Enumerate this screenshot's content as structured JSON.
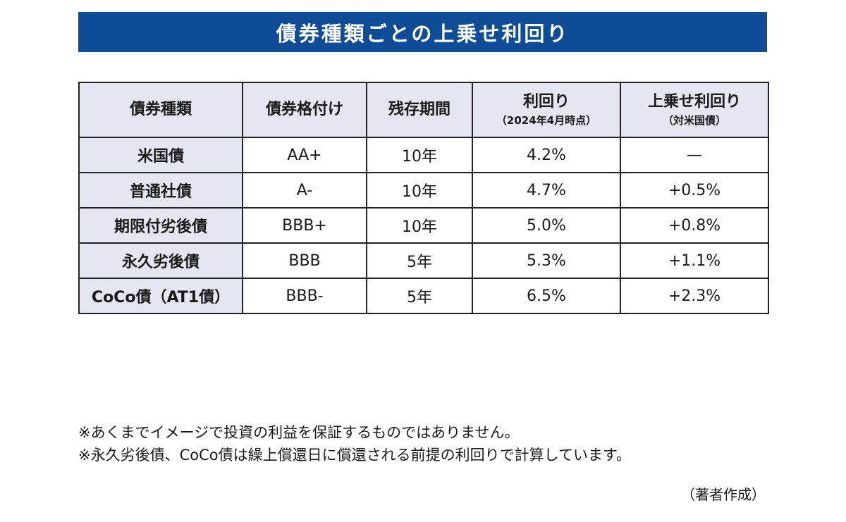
{
  "title": "債券種類ごとの上乗せ利回り",
  "table": {
    "headers": [
      {
        "label": "債券種類",
        "sub": ""
      },
      {
        "label": "債券格付け",
        "sub": ""
      },
      {
        "label": "残存期間",
        "sub": ""
      },
      {
        "label": "利回り",
        "sub": "（2024年4月時点）"
      },
      {
        "label": "上乗せ利回り",
        "sub": "（対米国債）"
      }
    ],
    "rows": [
      {
        "type": "米国債",
        "rating": "AA+",
        "term": "10年",
        "yield": "4.2%",
        "spread": "—"
      },
      {
        "type": "普通社債",
        "rating": "A-",
        "term": "10年",
        "yield": "4.7%",
        "spread": "+0.5%"
      },
      {
        "type": "期限付劣後債",
        "rating": "BBB+",
        "term": "10年",
        "yield": "5.0%",
        "spread": "+0.8%"
      },
      {
        "type": "永久劣後債",
        "rating": "BBB",
        "term": "5年",
        "yield": "5.3%",
        "spread": "+1.1%"
      },
      {
        "type": "CoCo債（AT1債）",
        "rating": "BBB-",
        "term": "5年",
        "yield": "6.5%",
        "spread": "+2.3%"
      }
    ]
  },
  "notes": [
    "※あくまでイメージで投資の利益を保証するものではありません。",
    "※永久劣後債、CoCo債は繰上償還日に償還される前提の利回りで計算しています。"
  ],
  "source": "（著者作成）",
  "colors": {
    "banner": "#0f4c98",
    "header_bg": "#e4e7f1"
  }
}
